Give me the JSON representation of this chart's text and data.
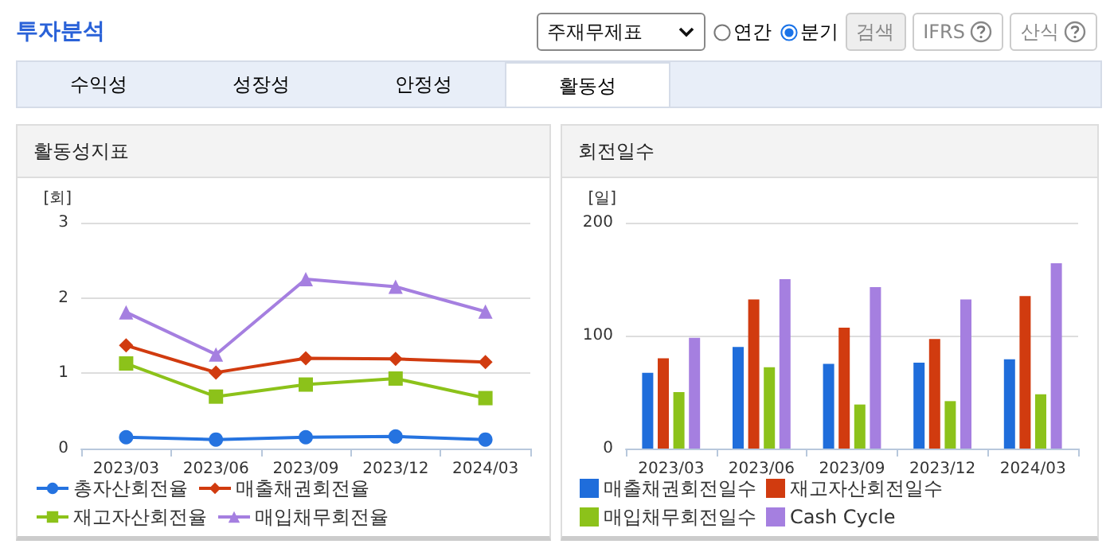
{
  "chart_data": [
    {
      "type": "other",
      "title": "투자분석",
      "categories": [
        "수익성",
        "성장성",
        "안정성",
        "활동성"
      ],
      "annotations": [
        "주재무제표",
        "연간",
        "분기",
        "검색",
        "IFRS",
        "산식"
      ]
    },
    {
      "type": "line",
      "title": "활동성지표",
      "ylabel": "[회]",
      "categories": [
        "2023/03",
        "2023/06",
        "2023/09",
        "2023/12",
        "2024/03"
      ],
      "ylim": [
        0,
        3
      ],
      "yticks": [
        0,
        1,
        2,
        3
      ],
      "grid": "y",
      "legend": "bottom",
      "series": [
        {
          "name": "총자산회전율",
          "color": "#2573e0",
          "marker": "circle",
          "values": [
            0.15,
            0.12,
            0.15,
            0.16,
            0.12
          ]
        },
        {
          "name": "매출채권회전율",
          "color": "#d13b0f",
          "marker": "diamond",
          "values": [
            1.37,
            1.01,
            1.2,
            1.19,
            1.15
          ]
        },
        {
          "name": "재고자산회전율",
          "color": "#8cc21a",
          "marker": "square",
          "values": [
            1.13,
            0.69,
            0.85,
            0.93,
            0.67
          ]
        },
        {
          "name": "매입채무회전율",
          "color": "#a57fe0",
          "marker": "triangle",
          "values": [
            1.81,
            1.25,
            2.25,
            2.15,
            1.82
          ]
        }
      ]
    },
    {
      "type": "bar",
      "title": "회전일수",
      "ylabel": "[일]",
      "categories": [
        "2023/03",
        "2023/06",
        "2023/09",
        "2023/12",
        "2024/03"
      ],
      "ylim": [
        0,
        200
      ],
      "yticks": [
        0,
        100,
        200
      ],
      "grid": "y",
      "legend": "bottom",
      "series": [
        {
          "name": "매출채권회전일수",
          "color": "#1f6ddb",
          "values": [
            67,
            90,
            75,
            76,
            79
          ]
        },
        {
          "name": "재고자산회전일수",
          "color": "#d13b0f",
          "values": [
            80,
            132,
            107,
            97,
            135
          ]
        },
        {
          "name": "매입채무회전일수",
          "color": "#8cc21a",
          "values": [
            50,
            72,
            39,
            42,
            48
          ]
        },
        {
          "name": "Cash Cycle",
          "color": "#a57fe0",
          "values": [
            98,
            150,
            143,
            132,
            164
          ]
        }
      ]
    }
  ]
}
